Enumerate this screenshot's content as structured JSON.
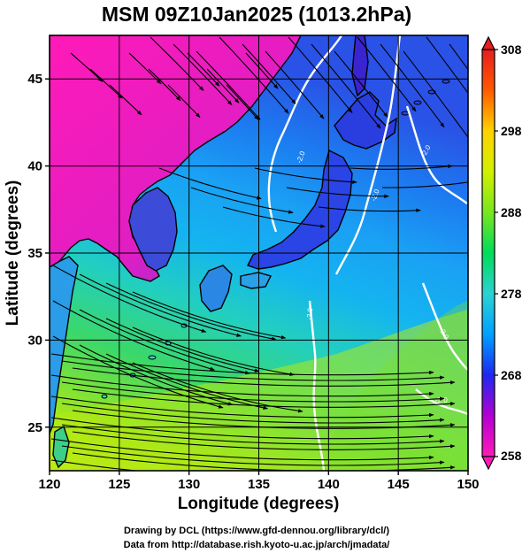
{
  "title": "MSM 09Z10Jan2025 (1013.2hPa)",
  "x_axis": {
    "label": "Longitude (degrees)",
    "range": [
      120,
      150
    ],
    "ticks": [
      120,
      125,
      130,
      135,
      140,
      145,
      150
    ]
  },
  "y_axis": {
    "label": "Latitude  (degrees)",
    "range": [
      22.5,
      47.5
    ],
    "ticks": [
      25,
      30,
      35,
      40,
      45
    ]
  },
  "colorbar": {
    "range": [
      258,
      308
    ],
    "labels": [
      308,
      298,
      288,
      278,
      268,
      258
    ],
    "colors": [
      "#ff1ab8",
      "#b400d2",
      "#1e28f0",
      "#00a0ff",
      "#2dd2d2",
      "#00dc5a",
      "#78e61e",
      "#d2f000",
      "#ffd200",
      "#ff5a00",
      "#e61e1e"
    ]
  },
  "contour_labels": [
    "-2.0",
    "-2.0",
    "-2.0",
    "-2.0",
    "-2.0",
    "-2.0"
  ],
  "credits": {
    "line1": "Drawing by DCL (https://www.gfd-dennou.org/library/dcl/)",
    "line2": "Data from http://database.rish.kyoto-u.ac.jp/arch/jmadata/"
  }
}
